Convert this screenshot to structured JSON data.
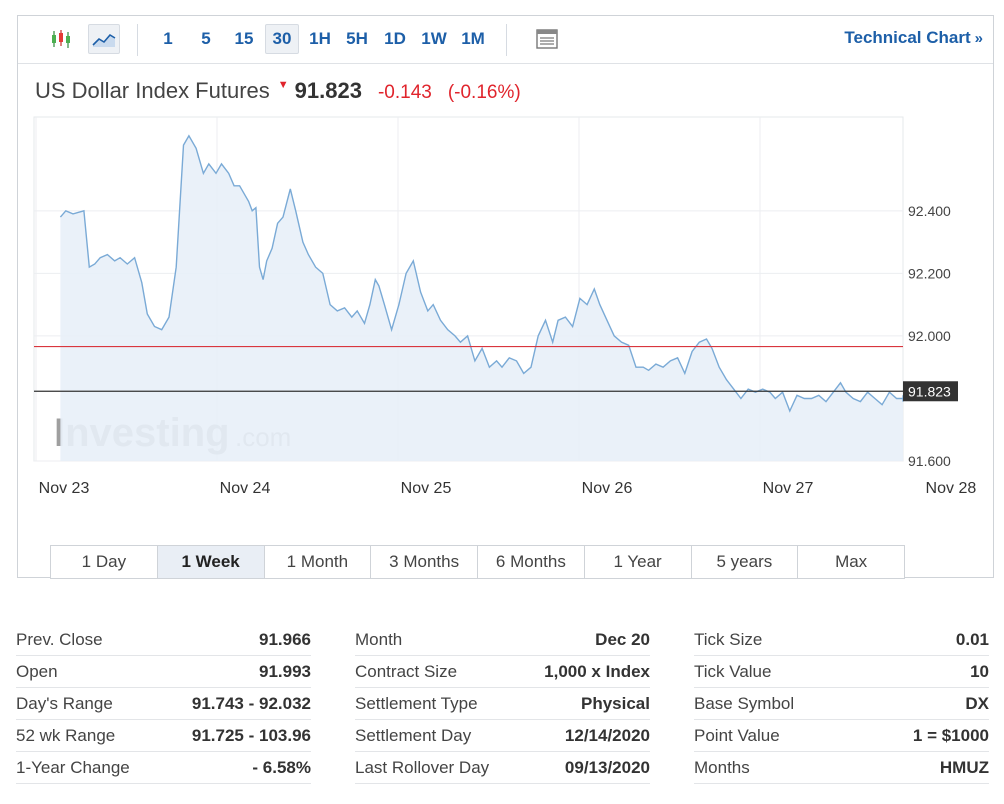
{
  "toolbar": {
    "icons": [
      {
        "name": "candlestick-icon",
        "selected": false
      },
      {
        "name": "area-chart-icon",
        "selected": true
      }
    ],
    "intervals": [
      {
        "label": "1",
        "selected": false
      },
      {
        "label": "5",
        "selected": false
      },
      {
        "label": "15",
        "selected": false
      },
      {
        "label": "30",
        "selected": true
      },
      {
        "label": "1H",
        "selected": false
      },
      {
        "label": "5H",
        "selected": false
      },
      {
        "label": "1D",
        "selected": false
      },
      {
        "label": "1W",
        "selected": false
      },
      {
        "label": "1M",
        "selected": false
      }
    ],
    "table_icon": "table-icon",
    "technical_chart_label": "Technical Chart",
    "technical_chart_arrow": "»"
  },
  "header": {
    "name": "US Dollar Index Futures",
    "price": "91.823",
    "change": "-0.143",
    "change_pct": "(-0.16%)"
  },
  "colors": {
    "line": "#7aaad6",
    "fill": "#e8f0f8",
    "prev_close_line": "#d9363e",
    "last_price_line": "#333333",
    "down": "#e0242c",
    "link": "#1d5fa8"
  },
  "chart_data": {
    "type": "area",
    "ylim": [
      91.6,
      92.7
    ],
    "y_ticks": [
      {
        "value": 92.4,
        "label": "92.400"
      },
      {
        "value": 92.2,
        "label": "92.200"
      },
      {
        "value": 92.0,
        "label": "92.000"
      },
      {
        "value": 91.6,
        "label": "91.600"
      }
    ],
    "x_ticks": [
      {
        "value": 0,
        "label": "Nov 23"
      },
      {
        "value": 1,
        "label": "Nov 24"
      },
      {
        "value": 2,
        "label": "Nov 25"
      },
      {
        "value": 3,
        "label": "Nov 26"
      },
      {
        "value": 4,
        "label": "Nov 27"
      },
      {
        "value": 4.9,
        "label": "Nov 28"
      }
    ],
    "grid": true,
    "reference_lines": [
      {
        "value": 91.966,
        "color": "#d9363e"
      },
      {
        "value": 91.823,
        "color": "#333333",
        "label": "91.823"
      }
    ],
    "watermark": "Investing.com",
    "series": [
      {
        "x": [
          -0.02,
          0.01,
          0.05,
          0.11,
          0.14,
          0.17,
          0.2,
          0.24,
          0.28,
          0.31,
          0.35,
          0.39,
          0.43,
          0.46,
          0.5,
          0.54,
          0.58,
          0.62,
          0.66,
          0.69,
          0.73,
          0.77,
          0.8,
          0.84,
          0.87,
          0.91,
          0.94,
          0.97,
          1.0,
          1.02,
          1.04,
          1.06,
          1.08,
          1.1,
          1.12,
          1.15,
          1.18,
          1.21,
          1.25,
          1.28,
          1.32,
          1.35,
          1.39,
          1.43,
          1.47,
          1.51,
          1.55,
          1.59,
          1.62,
          1.66,
          1.69,
          1.72,
          1.74,
          1.77,
          1.81,
          1.85,
          1.89,
          1.93,
          1.97,
          2.01,
          2.04,
          2.08,
          2.12,
          2.16,
          2.19,
          2.23,
          2.27,
          2.31,
          2.35,
          2.39,
          2.42,
          2.46,
          2.5,
          2.54,
          2.58,
          2.62,
          2.66,
          2.7,
          2.73,
          2.77,
          2.81,
          2.85,
          2.89,
          2.93,
          2.96,
          3.0,
          3.04,
          3.08,
          3.12,
          3.16,
          3.2,
          3.23,
          3.27,
          3.31,
          3.35,
          3.39,
          3.43,
          3.47,
          3.51,
          3.55,
          3.58,
          3.62,
          3.66,
          3.7,
          3.74,
          3.78,
          3.82,
          3.86,
          3.9,
          3.93,
          3.97,
          4.01,
          4.05,
          4.09,
          4.13,
          4.17,
          4.21,
          4.25,
          4.29,
          4.32,
          4.36,
          4.4,
          4.44,
          4.48,
          4.52,
          4.56,
          4.6,
          4.64,
          4.67,
          4.71,
          4.75,
          4.79,
          4.83,
          4.86,
          4.89,
          4.92
        ],
        "values": [
          92.38,
          92.4,
          92.39,
          92.4,
          92.22,
          92.23,
          92.25,
          92.26,
          92.24,
          92.25,
          92.23,
          92.25,
          92.17,
          92.07,
          92.03,
          92.02,
          92.06,
          92.22,
          92.61,
          92.64,
          92.6,
          92.52,
          92.55,
          92.52,
          92.55,
          92.52,
          92.48,
          92.48,
          92.45,
          92.43,
          92.4,
          92.41,
          92.22,
          92.18,
          92.24,
          92.28,
          92.36,
          92.38,
          92.47,
          92.4,
          92.3,
          92.26,
          92.22,
          92.2,
          92.1,
          92.08,
          92.09,
          92.06,
          92.08,
          92.04,
          92.1,
          92.18,
          92.16,
          92.1,
          92.02,
          92.1,
          92.2,
          92.24,
          92.14,
          92.08,
          92.1,
          92.05,
          92.02,
          92.0,
          91.98,
          92.0,
          91.92,
          91.96,
          91.9,
          91.92,
          91.9,
          91.93,
          91.92,
          91.88,
          91.9,
          92.0,
          92.05,
          91.98,
          92.05,
          92.06,
          92.03,
          92.12,
          92.1,
          92.15,
          92.1,
          92.05,
          92.0,
          91.98,
          91.97,
          91.9,
          91.9,
          91.89,
          91.91,
          91.9,
          91.92,
          91.93,
          91.88,
          91.95,
          91.98,
          91.99,
          91.96,
          91.9,
          91.86,
          91.83,
          91.8,
          91.83,
          91.82,
          91.83,
          91.82,
          91.8,
          91.82,
          91.76,
          91.81,
          91.8,
          91.8,
          91.81,
          91.79,
          91.82,
          91.85,
          91.82,
          91.8,
          91.79,
          91.82,
          91.8,
          91.78,
          91.82,
          91.8,
          91.8,
          91.81,
          91.79,
          91.8,
          91.8,
          91.8,
          91.79,
          91.8,
          91.81
        ]
      }
    ]
  },
  "time_ranges": [
    {
      "label": "1 Day",
      "active": false
    },
    {
      "label": "1 Week",
      "active": true
    },
    {
      "label": "1 Month",
      "active": false
    },
    {
      "label": "3 Months",
      "active": false
    },
    {
      "label": "6 Months",
      "active": false
    },
    {
      "label": "1 Year",
      "active": false
    },
    {
      "label": "5 years",
      "active": false
    },
    {
      "label": "Max",
      "active": false
    }
  ],
  "stats": {
    "col1": [
      {
        "label": "Prev. Close",
        "value": "91.966"
      },
      {
        "label": "Open",
        "value": "91.993"
      },
      {
        "label": "Day's Range",
        "value": "91.743 - 92.032"
      },
      {
        "label": "52 wk Range",
        "value": "91.725 - 103.96"
      },
      {
        "label": "1-Year Change",
        "value": "- 6.58%"
      }
    ],
    "col2": [
      {
        "label": "Month",
        "value": "Dec 20"
      },
      {
        "label": "Contract Size",
        "value": "1,000 x Index"
      },
      {
        "label": "Settlement Type",
        "value": "Physical"
      },
      {
        "label": "Settlement Day",
        "value": "12/14/2020"
      },
      {
        "label": "Last Rollover Day",
        "value": "09/13/2020"
      }
    ],
    "col3": [
      {
        "label": "Tick Size",
        "value": "0.01"
      },
      {
        "label": "Tick Value",
        "value": "10"
      },
      {
        "label": "Base Symbol",
        "value": "DX"
      },
      {
        "label": "Point Value",
        "value": "1 = $1000"
      },
      {
        "label": "Months",
        "value": "HMUZ"
      }
    ]
  }
}
